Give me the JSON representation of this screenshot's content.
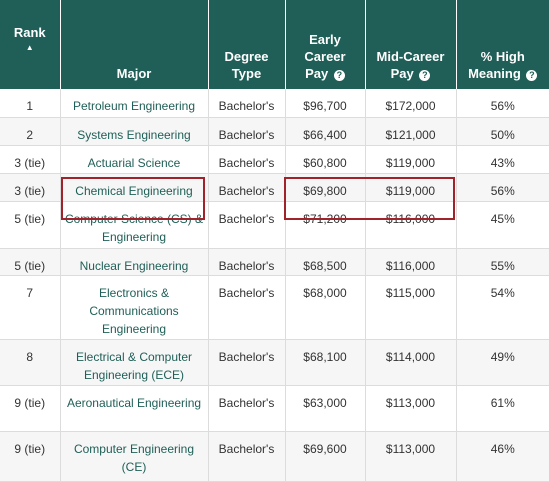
{
  "header": {
    "rank": "Rank",
    "rank_sort_icon": "sort-ascending-triangle",
    "major": "Major",
    "degree_type_line1": "Degree",
    "degree_type_line2": "Type",
    "early_line1": "Early",
    "early_line2": "Career",
    "early_line3": "Pay",
    "mid_line1": "Mid-Career",
    "mid_line2": "Pay",
    "pct_line1": "% High",
    "pct_line2": "Meaning",
    "info_icon": "?"
  },
  "rows": [
    {
      "rank": "1",
      "major": "Petroleum Engineering",
      "degree": "Bachelor's",
      "early": "$96,700",
      "mid": "$172,000",
      "pct": "56%"
    },
    {
      "rank": "2",
      "major": "Systems Engineering",
      "degree": "Bachelor's",
      "early": "$66,400",
      "mid": "$121,000",
      "pct": "50%"
    },
    {
      "rank": "3 (tie)",
      "major": "Actuarial Science",
      "degree": "Bachelor's",
      "early": "$60,800",
      "mid": "$119,000",
      "pct": "43%"
    },
    {
      "rank": "3 (tie)",
      "major": "Chemical Engineering",
      "degree": "Bachelor's",
      "early": "$69,800",
      "mid": "$119,000",
      "pct": "56%"
    },
    {
      "rank": "5 (tie)",
      "major": "Computer Science (CS) & Engineering",
      "degree": "Bachelor's",
      "early": "$71,200",
      "mid": "$116,000",
      "pct": "45%"
    },
    {
      "rank": "5 (tie)",
      "major": "Nuclear Engineering",
      "degree": "Bachelor's",
      "early": "$68,500",
      "mid": "$116,000",
      "pct": "55%"
    },
    {
      "rank": "7",
      "major": "Electronics & Communications Engineering",
      "degree": "Bachelor's",
      "early": "$68,000",
      "mid": "$115,000",
      "pct": "54%"
    },
    {
      "rank": "8",
      "major": "Electrical & Computer Engineering (ECE)",
      "degree": "Bachelor's",
      "early": "$68,100",
      "mid": "$114,000",
      "pct": "49%"
    },
    {
      "rank": "9 (tie)",
      "major": "Aeronautical Engineering",
      "degree": "Bachelor's",
      "early": "$63,000",
      "mid": "$113,000",
      "pct": "61%"
    },
    {
      "rank": "9 (tie)",
      "major": "Computer Engineering (CE)",
      "degree": "Bachelor's",
      "early": "$69,600",
      "mid": "$113,000",
      "pct": "46%"
    }
  ],
  "colors": {
    "header_bg": "#1f5f57",
    "major_text": "#1f5f57",
    "highlight_border": "#a0222a"
  }
}
